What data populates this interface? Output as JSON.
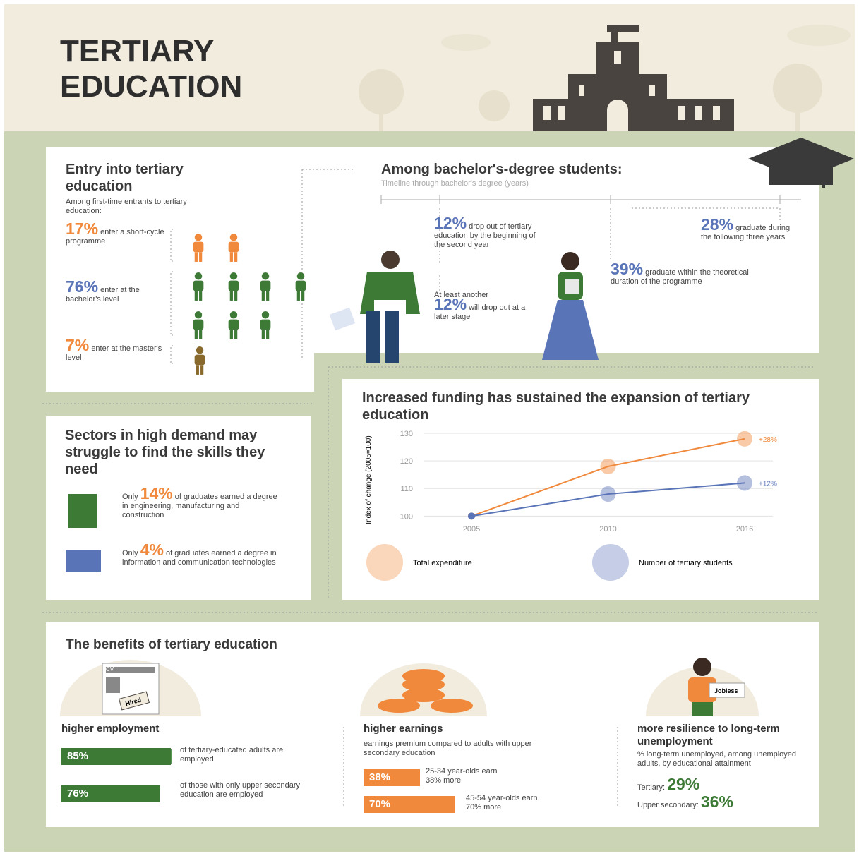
{
  "header": {
    "title": [
      "TERTIARY",
      "EDUCATION"
    ]
  },
  "entry": {
    "title": "Entry into tertiary education",
    "subtitle": "Among first-time entrants to tertiary education:",
    "items": [
      {
        "value": "17%",
        "text": "enter a short-cycle programme"
      },
      {
        "value": "76%",
        "text": "enter at the bachelor's level"
      },
      {
        "value": "7%",
        "text": "enter at the master's level"
      }
    ]
  },
  "bachelor": {
    "title": "Among bachelor's-degree students:",
    "timeline_label": "Timeline through bachelor's degree (years)",
    "items": [
      {
        "value": "12%",
        "text": "drop out of tertiary education by the beginning of the second year"
      },
      {
        "prefix": "At least another",
        "value": "12%",
        "text": "will drop out at a later stage"
      },
      {
        "value": "39%",
        "text": "graduate within the theoretical duration of the programme"
      },
      {
        "value": "28%",
        "text": "graduate during the following three years"
      }
    ]
  },
  "sectors": {
    "title": "Sectors in high demand may struggle to find the skills they need",
    "items": [
      {
        "prefix": "Only",
        "value": "14%",
        "text": "of graduates earned a degree in engineering, manufacturing and construction"
      },
      {
        "prefix": "Only",
        "value": "4%",
        "text": "of graduates earned a degree in information and communication technologies"
      }
    ]
  },
  "chart_data": {
    "type": "line",
    "title": "Increased funding has sustained the expansion of tertiary education",
    "y_label": "Index of change (2005=100)",
    "categories": [
      "2005",
      "2010",
      "2016"
    ],
    "series": [
      {
        "name": "Total expenditure",
        "color": "#f0893c",
        "values": [
          100,
          118,
          128
        ],
        "end_label": "+28%"
      },
      {
        "name": "Number of tertiary students",
        "color": "#5a74b8",
        "values": [
          100,
          108,
          112
        ],
        "end_label": "+12%"
      }
    ],
    "ylim": [
      96,
      130
    ],
    "yticks": [
      100,
      110,
      120,
      130
    ],
    "grid": true
  },
  "benefits": {
    "title": "The benefits of tertiary education",
    "employment": {
      "title": "higher employment",
      "icon_labels": [
        "CV",
        "Hired"
      ],
      "items": [
        {
          "value": "85%",
          "text": "of tertiary-educated adults are employed"
        },
        {
          "value": "76%",
          "text": "of those with only upper secondary education are employed"
        }
      ]
    },
    "earnings": {
      "title": "higher earnings",
      "subtitle": "earnings premium compared to adults with upper secondary education",
      "items": [
        {
          "value": "38%",
          "text": "25-34 year-olds earn 38% more"
        },
        {
          "value": "70%",
          "text": "45-54 year-olds earn 70% more"
        }
      ]
    },
    "resilience": {
      "title": "more resilience to long-term unemployment",
      "icon_label": "Jobless",
      "subtitle": "% long-term unemployed, among unemployed adults, by educational attainment",
      "items": [
        {
          "label": "Tertiary:",
          "value": "29%"
        },
        {
          "label": "Upper secondary:",
          "value": "36%"
        }
      ]
    }
  }
}
